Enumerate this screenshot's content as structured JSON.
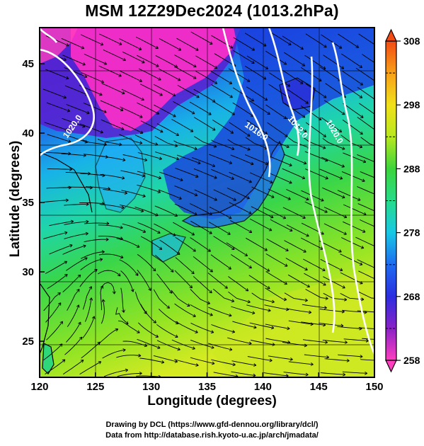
{
  "title": "MSM 12Z29Dec2024 (1013.2hPa)",
  "xlabel": "Longitude (degrees)",
  "ylabel": "Latitude  (degrees)",
  "credits": {
    "line1": "Drawing by DCL (https://www.gfd-dennou.org/library/dcl/)",
    "line2": "Data from http://database.rish.kyoto-u.ac.jp/arch/jmadata/"
  },
  "map": {
    "lon_range": [
      120,
      150
    ],
    "lat_range": [
      22.4,
      47.6
    ],
    "lon_ticks": [
      120,
      125,
      130,
      135,
      140,
      145,
      150
    ],
    "lat_ticks": [
      25,
      30,
      35,
      40,
      45
    ],
    "isobar_labels": [
      "1020.0",
      "1016.0",
      "1012.0",
      "1020.0"
    ],
    "colorbar": {
      "min": 258,
      "max": 308,
      "ticks": [
        258,
        268,
        278,
        288,
        298,
        308
      ],
      "colors": [
        "#ff3fbf",
        "#8a22c6",
        "#2b2ee0",
        "#1e6cf0",
        "#18c8e4",
        "#26dc8a",
        "#3cd43c",
        "#b8e81e",
        "#f0e01a",
        "#f7a019",
        "#f24b14"
      ]
    }
  }
}
